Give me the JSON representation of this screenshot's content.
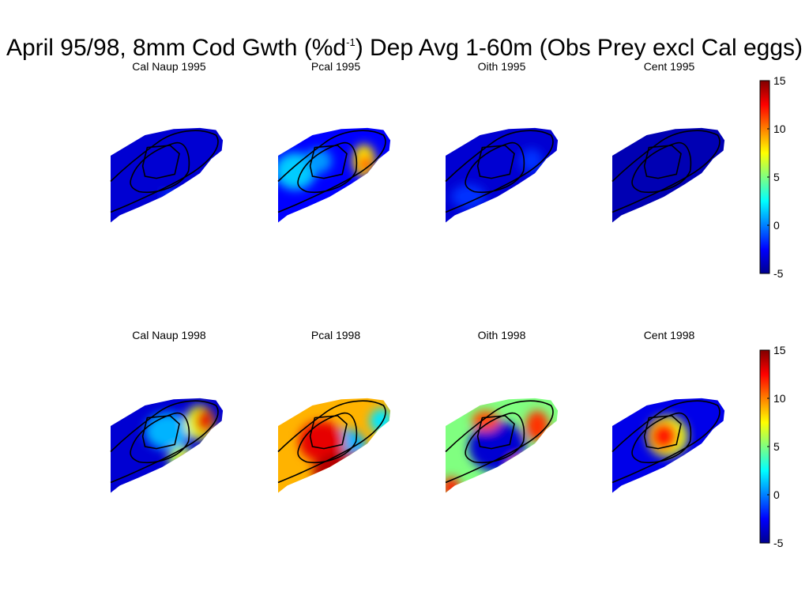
{
  "figure": {
    "title_parts": [
      "April 95/98, 8mm Cod Gwth (%d",
      "-1",
      ") Dep Avg 1-60m (Obs Prey excl Cal eggs)"
    ]
  },
  "colormap": {
    "name": "jet",
    "stops": [
      "#00008f",
      "#0000ff",
      "#0080ff",
      "#00ffff",
      "#80ff80",
      "#ffff00",
      "#ff8000",
      "#ff0000",
      "#800000"
    ]
  },
  "chart_data": {
    "type": "heatmap",
    "title": "April 95/98, 8mm Cod Gwth (%d-1) Dep Avg 1-60m (Obs Prey excl Cal eggs)",
    "colorbar": {
      "range": [
        -5,
        15
      ],
      "ticks": [
        "15",
        "10",
        "5",
        "0",
        "-5"
      ],
      "tick_values": [
        15,
        10,
        5,
        0,
        -5
      ]
    },
    "panels": [
      {
        "id": "cal-naup-1995",
        "title": "Cal Naup 1995",
        "year": 1995,
        "prey": "Cal Naup",
        "background": -3.5,
        "hotspots": [
          {
            "cx": 0.52,
            "cy": 0.68,
            "rx": 0.08,
            "ry": 0.06,
            "value": -1.5
          }
        ]
      },
      {
        "id": "pcal-1995",
        "title": "Pcal 1995",
        "year": 1995,
        "prey": "Pcal",
        "background": -2.5,
        "hotspots": [
          {
            "cx": 0.15,
            "cy": 0.45,
            "rx": 0.18,
            "ry": 0.18,
            "value": 1.5
          },
          {
            "cx": 0.35,
            "cy": 0.35,
            "rx": 0.12,
            "ry": 0.12,
            "value": 0.5
          },
          {
            "cx": 0.75,
            "cy": 0.35,
            "rx": 0.1,
            "ry": 0.16,
            "value": 8
          },
          {
            "cx": 0.76,
            "cy": 0.38,
            "rx": 0.05,
            "ry": 0.08,
            "value": 12.5
          }
        ]
      },
      {
        "id": "oith-1995",
        "title": "Oith 1995",
        "year": 1995,
        "prey": "Oith",
        "background": -3.5,
        "hotspots": [
          {
            "cx": 0.2,
            "cy": 0.7,
            "rx": 0.15,
            "ry": 0.12,
            "value": -1.5
          },
          {
            "cx": 0.75,
            "cy": 0.35,
            "rx": 0.1,
            "ry": 0.12,
            "value": -1.5
          }
        ]
      },
      {
        "id": "cent-1995",
        "title": "Cent 1995",
        "year": 1995,
        "prey": "Cent",
        "background": -4.2,
        "hotspots": []
      },
      {
        "id": "cal-naup-1998",
        "title": "Cal Naup 1998",
        "year": 1998,
        "prey": "Cal Naup",
        "background": -3.5,
        "hotspots": [
          {
            "cx": 0.5,
            "cy": 0.35,
            "rx": 0.2,
            "ry": 0.18,
            "value": 1
          },
          {
            "cx": 0.78,
            "cy": 0.27,
            "rx": 0.13,
            "ry": 0.17,
            "value": 7
          },
          {
            "cx": 0.82,
            "cy": 0.25,
            "rx": 0.08,
            "ry": 0.12,
            "value": 13
          },
          {
            "cx": 0.62,
            "cy": 0.62,
            "rx": 0.12,
            "ry": 0.12,
            "value": 6
          },
          {
            "cx": 0.66,
            "cy": 0.64,
            "rx": 0.06,
            "ry": 0.06,
            "value": 11
          }
        ]
      },
      {
        "id": "pcal-1998",
        "title": "Pcal 1998",
        "year": 1998,
        "prey": "Pcal",
        "background": 9,
        "hotspots": [
          {
            "cx": 0.55,
            "cy": 0.5,
            "rx": 0.22,
            "ry": 0.18,
            "value": 1
          },
          {
            "cx": 0.38,
            "cy": 0.45,
            "rx": 0.2,
            "ry": 0.2,
            "value": 13
          },
          {
            "cx": 0.6,
            "cy": 0.75,
            "rx": 0.3,
            "ry": 0.2,
            "value": 14
          },
          {
            "cx": 0.9,
            "cy": 0.25,
            "rx": 0.1,
            "ry": 0.12,
            "value": 2
          }
        ]
      },
      {
        "id": "oith-1998",
        "title": "Oith 1998",
        "year": 1998,
        "prey": "Oith",
        "background": 5,
        "hotspots": [
          {
            "cx": 0.45,
            "cy": 0.5,
            "rx": 0.25,
            "ry": 0.25,
            "value": -3.5
          },
          {
            "cx": 0.35,
            "cy": 0.25,
            "rx": 0.12,
            "ry": 0.1,
            "value": 11
          },
          {
            "cx": 0.8,
            "cy": 0.3,
            "rx": 0.1,
            "ry": 0.15,
            "value": 11.5
          },
          {
            "cx": 0.65,
            "cy": 0.7,
            "rx": 0.1,
            "ry": 0.1,
            "value": 10
          },
          {
            "cx": 0.05,
            "cy": 0.9,
            "rx": 0.08,
            "ry": 0.1,
            "value": 12
          }
        ]
      },
      {
        "id": "cent-1998",
        "title": "Cent 1998",
        "year": 1998,
        "prey": "Cent",
        "background": -3,
        "hotspots": [
          {
            "cx": 0.48,
            "cy": 0.4,
            "rx": 0.18,
            "ry": 0.2,
            "value": 7
          },
          {
            "cx": 0.45,
            "cy": 0.4,
            "rx": 0.12,
            "ry": 0.14,
            "value": 12
          }
        ]
      }
    ]
  }
}
